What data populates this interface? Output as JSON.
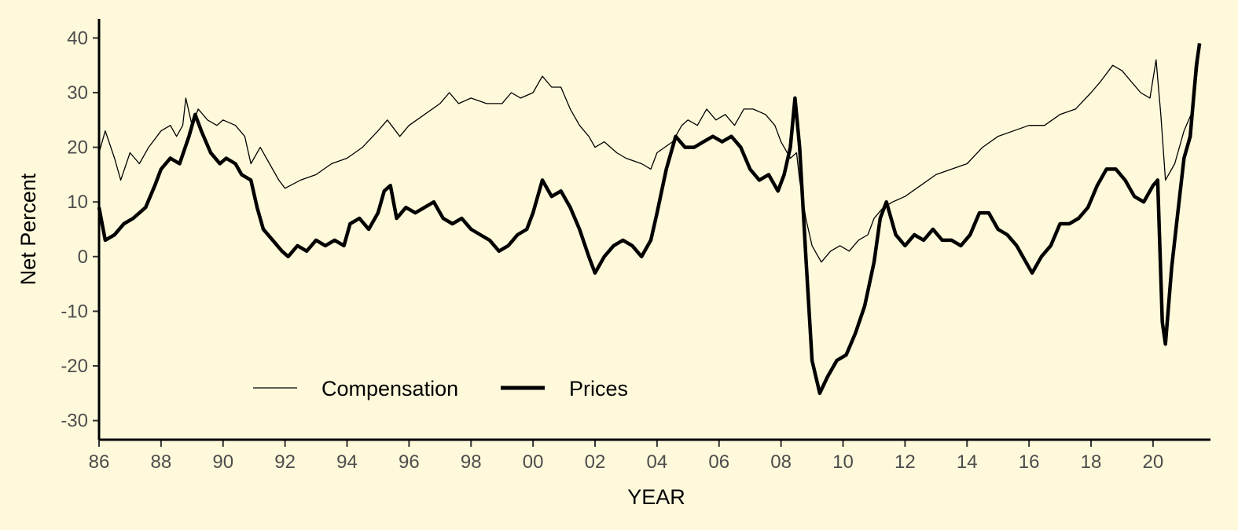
{
  "chart_data": {
    "type": "line",
    "xlabel": "YEAR",
    "ylabel": "Net Percent",
    "xlim": [
      1986,
      2021.6
    ],
    "ylim": [
      -33.5,
      43.5
    ],
    "x_ticks": [
      {
        "x": 1986,
        "label": "86"
      },
      {
        "x": 1988,
        "label": "88"
      },
      {
        "x": 1990,
        "label": "90"
      },
      {
        "x": 1992,
        "label": "92"
      },
      {
        "x": 1994,
        "label": "94"
      },
      {
        "x": 1996,
        "label": "96"
      },
      {
        "x": 1998,
        "label": "98"
      },
      {
        "x": 2000,
        "label": "00"
      },
      {
        "x": 2002,
        "label": "02"
      },
      {
        "x": 2004,
        "label": "04"
      },
      {
        "x": 2006,
        "label": "06"
      },
      {
        "x": 2008,
        "label": "08"
      },
      {
        "x": 2010,
        "label": "10"
      },
      {
        "x": 2012,
        "label": "12"
      },
      {
        "x": 2014,
        "label": "14"
      },
      {
        "x": 2016,
        "label": "16"
      },
      {
        "x": 2018,
        "label": "18"
      },
      {
        "x": 2020,
        "label": "20"
      }
    ],
    "y_ticks": [
      -30,
      -20,
      -10,
      0,
      10,
      20,
      30,
      40
    ],
    "grid": false,
    "legend_position": "bottom-left",
    "series": [
      {
        "name": "Compensation",
        "line": "thin",
        "points": [
          [
            1986.0,
            19
          ],
          [
            1986.2,
            23
          ],
          [
            1986.5,
            18
          ],
          [
            1986.7,
            14
          ],
          [
            1987.0,
            19
          ],
          [
            1987.3,
            17
          ],
          [
            1987.6,
            20
          ],
          [
            1988.0,
            23
          ],
          [
            1988.3,
            24
          ],
          [
            1988.5,
            22
          ],
          [
            1988.7,
            24
          ],
          [
            1988.8,
            29
          ],
          [
            1989.0,
            24
          ],
          [
            1989.2,
            27
          ],
          [
            1989.5,
            25
          ],
          [
            1989.8,
            24
          ],
          [
            1990.0,
            25
          ],
          [
            1990.4,
            24
          ],
          [
            1990.7,
            22
          ],
          [
            1990.9,
            17
          ],
          [
            1991.2,
            20
          ],
          [
            1991.5,
            17
          ],
          [
            1991.8,
            14
          ],
          [
            1992.0,
            12.5
          ],
          [
            1992.5,
            14
          ],
          [
            1993.0,
            15
          ],
          [
            1993.5,
            17
          ],
          [
            1994.0,
            18
          ],
          [
            1994.5,
            20
          ],
          [
            1995.0,
            23
          ],
          [
            1995.3,
            25
          ],
          [
            1995.7,
            22
          ],
          [
            1996.0,
            24
          ],
          [
            1996.5,
            26
          ],
          [
            1997.0,
            28
          ],
          [
            1997.3,
            30
          ],
          [
            1997.6,
            28
          ],
          [
            1998.0,
            29
          ],
          [
            1998.5,
            28
          ],
          [
            1999.0,
            28
          ],
          [
            1999.3,
            30
          ],
          [
            1999.6,
            29
          ],
          [
            2000.0,
            30
          ],
          [
            2000.3,
            33
          ],
          [
            2000.6,
            31
          ],
          [
            2000.9,
            31
          ],
          [
            2001.2,
            27
          ],
          [
            2001.5,
            24
          ],
          [
            2001.8,
            22
          ],
          [
            2002.0,
            20
          ],
          [
            2002.3,
            21
          ],
          [
            2002.7,
            19
          ],
          [
            2003.0,
            18
          ],
          [
            2003.5,
            17
          ],
          [
            2003.8,
            16
          ],
          [
            2004.0,
            19
          ],
          [
            2004.5,
            21
          ],
          [
            2004.8,
            24
          ],
          [
            2005.0,
            25
          ],
          [
            2005.3,
            24
          ],
          [
            2005.6,
            27
          ],
          [
            2005.9,
            25
          ],
          [
            2006.2,
            26
          ],
          [
            2006.5,
            24
          ],
          [
            2006.8,
            27
          ],
          [
            2007.1,
            27
          ],
          [
            2007.5,
            26
          ],
          [
            2007.8,
            24
          ],
          [
            2008.0,
            21
          ],
          [
            2008.3,
            18
          ],
          [
            2008.5,
            19
          ],
          [
            2008.6,
            14
          ],
          [
            2008.8,
            7
          ],
          [
            2009.0,
            2
          ],
          [
            2009.3,
            -1
          ],
          [
            2009.6,
            1
          ],
          [
            2009.9,
            2
          ],
          [
            2010.2,
            1
          ],
          [
            2010.5,
            3
          ],
          [
            2010.8,
            4
          ],
          [
            2011.0,
            7
          ],
          [
            2011.3,
            9
          ],
          [
            2011.6,
            10
          ],
          [
            2012.0,
            11
          ],
          [
            2012.5,
            13
          ],
          [
            2013.0,
            15
          ],
          [
            2013.5,
            16
          ],
          [
            2014.0,
            17
          ],
          [
            2014.5,
            20
          ],
          [
            2015.0,
            22
          ],
          [
            2015.5,
            23
          ],
          [
            2016.0,
            24
          ],
          [
            2016.5,
            24
          ],
          [
            2017.0,
            26
          ],
          [
            2017.5,
            27
          ],
          [
            2018.0,
            30
          ],
          [
            2018.3,
            32
          ],
          [
            2018.7,
            35
          ],
          [
            2019.0,
            34
          ],
          [
            2019.3,
            32
          ],
          [
            2019.6,
            30
          ],
          [
            2019.9,
            29
          ],
          [
            2020.1,
            36
          ],
          [
            2020.25,
            26
          ],
          [
            2020.4,
            14
          ],
          [
            2020.7,
            17
          ],
          [
            2021.0,
            23
          ],
          [
            2021.3,
            27
          ],
          [
            2021.5,
            38
          ]
        ]
      },
      {
        "name": "Prices",
        "line": "thick",
        "points": [
          [
            1986.0,
            9
          ],
          [
            1986.2,
            3
          ],
          [
            1986.5,
            4
          ],
          [
            1986.8,
            6
          ],
          [
            1987.1,
            7
          ],
          [
            1987.5,
            9
          ],
          [
            1987.8,
            13
          ],
          [
            1988.0,
            16
          ],
          [
            1988.3,
            18
          ],
          [
            1988.6,
            17
          ],
          [
            1988.9,
            22
          ],
          [
            1989.1,
            26
          ],
          [
            1989.3,
            23
          ],
          [
            1989.6,
            19
          ],
          [
            1989.9,
            17
          ],
          [
            1990.1,
            18
          ],
          [
            1990.4,
            17
          ],
          [
            1990.6,
            15
          ],
          [
            1990.9,
            14
          ],
          [
            1991.1,
            9
          ],
          [
            1991.3,
            5
          ],
          [
            1991.6,
            3
          ],
          [
            1991.9,
            1
          ],
          [
            1992.1,
            0
          ],
          [
            1992.4,
            2
          ],
          [
            1992.7,
            1
          ],
          [
            1993.0,
            3
          ],
          [
            1993.3,
            2
          ],
          [
            1993.6,
            3
          ],
          [
            1993.9,
            2
          ],
          [
            1994.1,
            6
          ],
          [
            1994.4,
            7
          ],
          [
            1994.7,
            5
          ],
          [
            1995.0,
            8
          ],
          [
            1995.2,
            12
          ],
          [
            1995.4,
            13
          ],
          [
            1995.6,
            7
          ],
          [
            1995.9,
            9
          ],
          [
            1996.2,
            8
          ],
          [
            1996.5,
            9
          ],
          [
            1996.8,
            10
          ],
          [
            1997.1,
            7
          ],
          [
            1997.4,
            6
          ],
          [
            1997.7,
            7
          ],
          [
            1998.0,
            5
          ],
          [
            1998.3,
            4
          ],
          [
            1998.6,
            3
          ],
          [
            1998.9,
            1
          ],
          [
            1999.2,
            2
          ],
          [
            1999.5,
            4
          ],
          [
            1999.8,
            5
          ],
          [
            2000.0,
            8
          ],
          [
            2000.3,
            14
          ],
          [
            2000.6,
            11
          ],
          [
            2000.9,
            12
          ],
          [
            2001.2,
            9
          ],
          [
            2001.5,
            5
          ],
          [
            2001.8,
            0
          ],
          [
            2002.0,
            -3
          ],
          [
            2002.3,
            0
          ],
          [
            2002.6,
            2
          ],
          [
            2002.9,
            3
          ],
          [
            2003.2,
            2
          ],
          [
            2003.5,
            0
          ],
          [
            2003.8,
            3
          ],
          [
            2004.0,
            8
          ],
          [
            2004.3,
            16
          ],
          [
            2004.6,
            22
          ],
          [
            2004.9,
            20
          ],
          [
            2005.2,
            20
          ],
          [
            2005.5,
            21
          ],
          [
            2005.8,
            22
          ],
          [
            2006.1,
            21
          ],
          [
            2006.4,
            22
          ],
          [
            2006.7,
            20
          ],
          [
            2007.0,
            16
          ],
          [
            2007.3,
            14
          ],
          [
            2007.6,
            15
          ],
          [
            2007.9,
            12
          ],
          [
            2008.1,
            15
          ],
          [
            2008.3,
            20
          ],
          [
            2008.45,
            29
          ],
          [
            2008.6,
            20
          ],
          [
            2008.8,
            0
          ],
          [
            2009.0,
            -19
          ],
          [
            2009.25,
            -25
          ],
          [
            2009.5,
            -22
          ],
          [
            2009.8,
            -19
          ],
          [
            2010.1,
            -18
          ],
          [
            2010.4,
            -14
          ],
          [
            2010.7,
            -9
          ],
          [
            2011.0,
            -1
          ],
          [
            2011.2,
            7
          ],
          [
            2011.4,
            10
          ],
          [
            2011.7,
            4
          ],
          [
            2012.0,
            2
          ],
          [
            2012.3,
            4
          ],
          [
            2012.6,
            3
          ],
          [
            2012.9,
            5
          ],
          [
            2013.2,
            3
          ],
          [
            2013.5,
            3
          ],
          [
            2013.8,
            2
          ],
          [
            2014.1,
            4
          ],
          [
            2014.4,
            8
          ],
          [
            2014.7,
            8
          ],
          [
            2015.0,
            5
          ],
          [
            2015.3,
            4
          ],
          [
            2015.6,
            2
          ],
          [
            2015.9,
            -1
          ],
          [
            2016.1,
            -3
          ],
          [
            2016.4,
            0
          ],
          [
            2016.7,
            2
          ],
          [
            2017.0,
            6
          ],
          [
            2017.3,
            6
          ],
          [
            2017.6,
            7
          ],
          [
            2017.9,
            9
          ],
          [
            2018.2,
            13
          ],
          [
            2018.5,
            16
          ],
          [
            2018.8,
            16
          ],
          [
            2019.1,
            14
          ],
          [
            2019.4,
            11
          ],
          [
            2019.7,
            10
          ],
          [
            2020.0,
            13
          ],
          [
            2020.15,
            14
          ],
          [
            2020.3,
            -12
          ],
          [
            2020.4,
            -16
          ],
          [
            2020.6,
            -2
          ],
          [
            2020.8,
            8
          ],
          [
            2021.0,
            18
          ],
          [
            2021.2,
            22
          ],
          [
            2021.4,
            35
          ],
          [
            2021.5,
            39
          ]
        ]
      }
    ]
  }
}
